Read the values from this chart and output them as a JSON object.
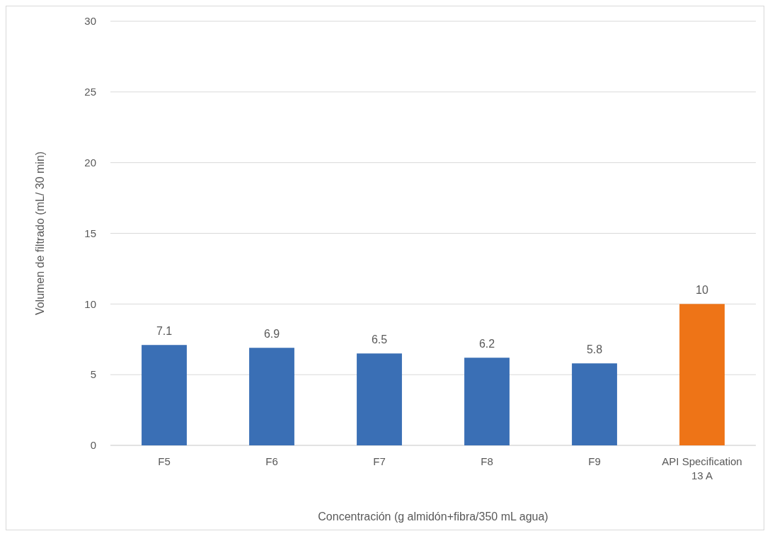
{
  "chart_data": {
    "type": "bar",
    "xlabel": "Concentración (g almidón+fibra/350 mL agua)",
    "ylabel": "Volumen de filtrado (mL/ 30 min)",
    "categories": [
      "F5",
      "F6",
      "F7",
      "F8",
      "F9",
      "API Specification 13 A"
    ],
    "values": [
      7.1,
      6.9,
      6.5,
      6.2,
      5.8,
      10
    ],
    "colors": [
      "#3a6fb5",
      "#3a6fb5",
      "#3a6fb5",
      "#3a6fb5",
      "#3a6fb5",
      "#ee7417"
    ],
    "ylim": [
      0,
      30
    ],
    "yticks": [
      0,
      5,
      10,
      15,
      20,
      25,
      30
    ],
    "grid": "y",
    "data_labels": true
  }
}
